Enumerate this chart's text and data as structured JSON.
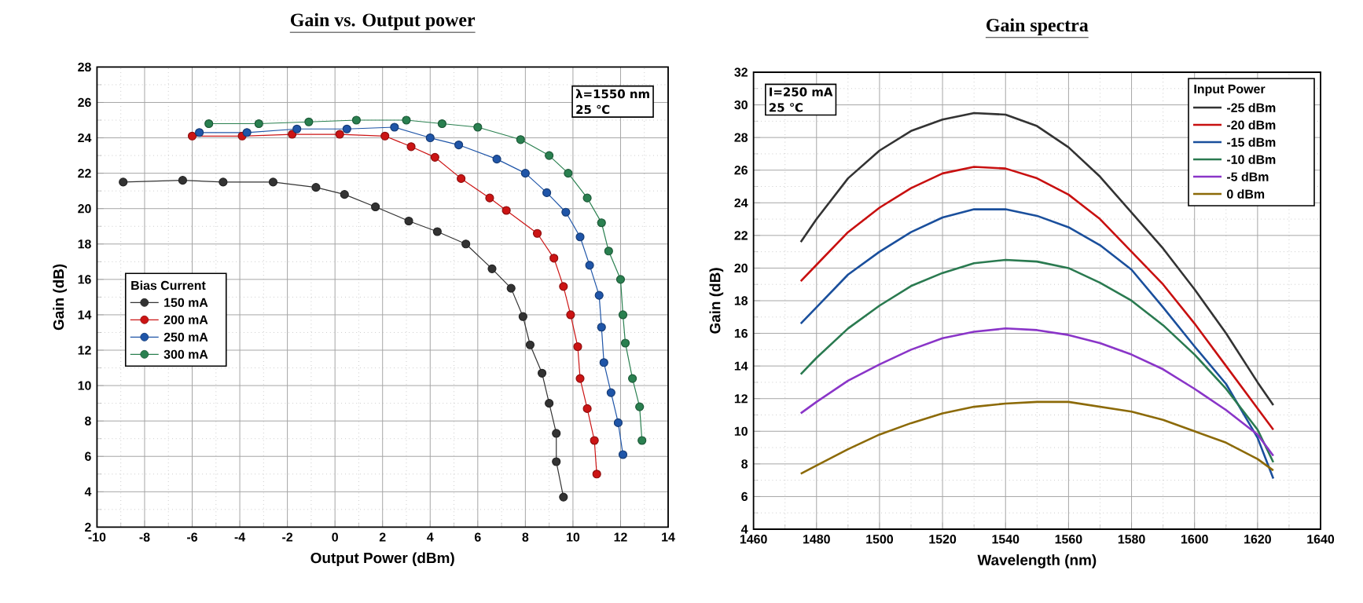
{
  "chart_data": [
    {
      "type": "line",
      "title": "Gain vs. Output power",
      "xlabel": "Output Power (dBm)",
      "ylabel": "Gain (dB)",
      "xlim": [
        -10,
        14
      ],
      "xticks": [
        -10,
        -8,
        -6,
        -4,
        -2,
        0,
        2,
        4,
        6,
        8,
        10,
        12,
        14
      ],
      "ylim": [
        2,
        28
      ],
      "yticks": [
        2,
        4,
        6,
        8,
        10,
        12,
        14,
        16,
        18,
        20,
        22,
        24,
        26,
        28
      ],
      "grid": true,
      "legend": "left",
      "legend_title": "Bias Current",
      "marker": "circle",
      "line_style": "solid",
      "annotations": [
        "λ=1550 nm",
        "25 ℃"
      ],
      "series": [
        {
          "name": "150 mA",
          "color": "#333333",
          "x": [
            -8.9,
            -6.4,
            -4.7,
            -2.6,
            -0.8,
            0.4,
            1.7,
            3.1,
            4.3,
            5.5,
            6.6,
            7.4,
            7.9,
            8.2,
            8.7,
            9.0,
            9.3,
            9.3,
            9.6
          ],
          "values": [
            21.5,
            21.6,
            21.5,
            21.5,
            21.2,
            20.8,
            20.1,
            19.3,
            18.7,
            18.0,
            16.6,
            15.5,
            13.9,
            12.3,
            10.7,
            9.0,
            7.3,
            5.7,
            3.7
          ]
        },
        {
          "name": "200 mA",
          "color": "#cc1414",
          "x": [
            -6.0,
            -3.9,
            -1.8,
            0.2,
            2.1,
            3.2,
            4.2,
            5.3,
            6.5,
            7.2,
            8.5,
            9.2,
            9.6,
            9.9,
            10.2,
            10.3,
            10.6,
            10.9,
            11.0
          ],
          "values": [
            24.1,
            24.1,
            24.2,
            24.2,
            24.1,
            23.5,
            22.9,
            21.7,
            20.6,
            19.9,
            18.6,
            17.2,
            15.6,
            14.0,
            12.2,
            10.4,
            8.7,
            6.9,
            5.0
          ]
        },
        {
          "name": "250 mA",
          "color": "#1f55a8",
          "x": [
            -5.7,
            -3.7,
            -1.6,
            0.5,
            2.5,
            4.0,
            5.2,
            6.8,
            8.0,
            8.9,
            9.7,
            10.3,
            10.7,
            11.1,
            11.2,
            11.3,
            11.6,
            11.9,
            12.1
          ],
          "values": [
            24.3,
            24.3,
            24.5,
            24.5,
            24.6,
            24.0,
            23.6,
            22.8,
            22.0,
            20.9,
            19.8,
            18.4,
            16.8,
            15.1,
            13.3,
            11.3,
            9.6,
            7.9,
            6.1
          ]
        },
        {
          "name": "300 mA",
          "color": "#2a8050",
          "x": [
            -5.3,
            -3.2,
            -1.1,
            0.9,
            3.0,
            4.5,
            6.0,
            7.8,
            9.0,
            9.8,
            10.6,
            11.2,
            11.5,
            12.0,
            12.1,
            12.2,
            12.5,
            12.8,
            12.9
          ],
          "values": [
            24.8,
            24.8,
            24.9,
            25.0,
            25.0,
            24.8,
            24.6,
            23.9,
            23.0,
            22.0,
            20.6,
            19.2,
            17.6,
            16.0,
            14.0,
            12.4,
            10.4,
            8.8,
            6.9
          ]
        }
      ]
    },
    {
      "type": "line",
      "title": "Gain spectra",
      "xlabel": "Wavelength (nm)",
      "ylabel": "Gain (dB)",
      "xlim": [
        1460,
        1640
      ],
      "xticks": [
        1460,
        1480,
        1500,
        1520,
        1540,
        1560,
        1580,
        1600,
        1620,
        1640
      ],
      "ylim": [
        4,
        32
      ],
      "yticks": [
        4,
        6,
        8,
        10,
        12,
        14,
        16,
        18,
        20,
        22,
        24,
        26,
        28,
        30,
        32
      ],
      "grid": true,
      "legend": "top right",
      "legend_title": "Input Power",
      "line_style": "solid",
      "annotations": [
        "I=250 mA",
        "25 ℃"
      ],
      "x": [
        1475,
        1480,
        1490,
        1500,
        1510,
        1520,
        1530,
        1540,
        1550,
        1560,
        1570,
        1580,
        1590,
        1600,
        1610,
        1620,
        1625
      ],
      "series": [
        {
          "name": "-25 dBm",
          "color": "#333333",
          "values": [
            21.6,
            23.0,
            25.5,
            27.2,
            28.4,
            29.1,
            29.5,
            29.4,
            28.7,
            27.4,
            25.6,
            23.4,
            21.2,
            18.7,
            16.0,
            13.0,
            11.6
          ]
        },
        {
          "name": "-20 dBm",
          "color": "#c81010",
          "values": [
            19.2,
            20.2,
            22.2,
            23.7,
            24.9,
            25.8,
            26.2,
            26.1,
            25.5,
            24.5,
            23.0,
            21.0,
            19.0,
            16.6,
            14.0,
            11.4,
            10.1
          ]
        },
        {
          "name": "-15 dBm",
          "color": "#1a4f9c",
          "values": [
            16.6,
            17.6,
            19.6,
            21.0,
            22.2,
            23.1,
            23.6,
            23.6,
            23.2,
            22.5,
            21.4,
            19.9,
            17.6,
            15.2,
            12.9,
            9.6,
            7.1
          ]
        },
        {
          "name": "-10 dBm",
          "color": "#2a7a50",
          "values": [
            13.5,
            14.5,
            16.3,
            17.7,
            18.9,
            19.7,
            20.3,
            20.5,
            20.4,
            20.0,
            19.1,
            18.0,
            16.5,
            14.7,
            12.6,
            10.1,
            8.1
          ]
        },
        {
          "name": "-5 dBm",
          "color": "#8a35c8",
          "values": [
            11.1,
            11.8,
            13.1,
            14.1,
            15.0,
            15.7,
            16.1,
            16.3,
            16.2,
            15.9,
            15.4,
            14.7,
            13.8,
            12.6,
            11.3,
            9.8,
            8.5
          ]
        },
        {
          "name": "0 dBm",
          "color": "#8c6a08",
          "values": [
            7.4,
            7.9,
            8.9,
            9.8,
            10.5,
            11.1,
            11.5,
            11.7,
            11.8,
            11.8,
            11.5,
            11.2,
            10.7,
            10.0,
            9.3,
            8.3,
            7.6
          ]
        }
      ]
    }
  ]
}
